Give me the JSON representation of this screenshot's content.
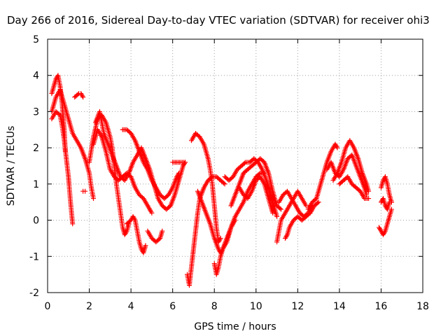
{
  "chart_data": {
    "type": "scatter",
    "title": "Day 266 of 2016, Sidereal Day-to-day VTEC variation (SDTVAR) for receiver ohi3",
    "xlabel": "GPS time / hours",
    "ylabel": "SDTVAR / TECUs",
    "xlim": [
      0,
      18
    ],
    "ylim": [
      -2,
      5
    ],
    "xticks": [
      "0",
      "2",
      "4",
      "6",
      "8",
      "10",
      "12",
      "14",
      "16",
      "18"
    ],
    "yticks": [
      "-2",
      "-1",
      "0",
      "1",
      "2",
      "3",
      "4",
      "5"
    ],
    "grid": true,
    "marker": "+",
    "color": "#ff0000",
    "tracks": [
      [
        [
          0.2,
          3.0
        ],
        [
          0.4,
          3.4
        ],
        [
          0.6,
          3.6
        ],
        [
          0.8,
          3.2
        ],
        [
          1.0,
          2.8
        ],
        [
          1.2,
          2.4
        ],
        [
          1.4,
          2.2
        ],
        [
          1.6,
          2.0
        ],
        [
          1.8,
          1.7
        ],
        [
          2.0,
          1.3
        ],
        [
          2.1,
          0.9
        ],
        [
          2.2,
          0.6
        ]
      ],
      [
        [
          0.2,
          2.8
        ],
        [
          0.4,
          3.0
        ],
        [
          0.6,
          2.9
        ],
        [
          0.7,
          2.6
        ],
        [
          0.8,
          2.2
        ],
        [
          0.9,
          1.7
        ],
        [
          1.0,
          1.2
        ],
        [
          1.1,
          0.5
        ],
        [
          1.2,
          -0.1
        ]
      ],
      [
        [
          0.2,
          3.5
        ],
        [
          0.4,
          3.9
        ],
        [
          0.5,
          4.0
        ],
        [
          0.6,
          3.7
        ],
        [
          0.7,
          3.2
        ],
        [
          0.8,
          2.5
        ],
        [
          0.85,
          1.9
        ]
      ],
      [
        [
          1.3,
          3.4
        ],
        [
          1.5,
          3.5
        ],
        [
          1.6,
          3.5
        ],
        [
          1.7,
          3.4
        ]
      ],
      [
        [
          1.7,
          0.8
        ],
        [
          1.8,
          0.8
        ]
      ],
      [
        [
          2.0,
          1.6
        ],
        [
          2.2,
          2.3
        ],
        [
          2.4,
          2.8
        ],
        [
          2.6,
          2.9
        ],
        [
          2.8,
          2.7
        ],
        [
          3.0,
          2.3
        ],
        [
          3.1,
          2.0
        ],
        [
          3.2,
          1.5
        ],
        [
          3.3,
          1.0
        ],
        [
          3.4,
          0.6
        ],
        [
          3.5,
          0.2
        ],
        [
          3.6,
          -0.2
        ],
        [
          3.7,
          -0.4
        ],
        [
          3.8,
          -0.3
        ],
        [
          3.9,
          -0.1
        ]
      ],
      [
        [
          2.2,
          2.1
        ],
        [
          2.4,
          2.5
        ],
        [
          2.6,
          2.3
        ],
        [
          2.8,
          1.9
        ],
        [
          3.0,
          1.4
        ],
        [
          3.2,
          1.2
        ],
        [
          3.4,
          1.1
        ],
        [
          3.6,
          1.2
        ],
        [
          3.8,
          1.3
        ],
        [
          4.0,
          1.2
        ],
        [
          4.2,
          0.9
        ],
        [
          4.4,
          0.7
        ],
        [
          4.6,
          0.6
        ],
        [
          4.8,
          0.4
        ],
        [
          5.0,
          0.2
        ]
      ],
      [
        [
          2.3,
          2.7
        ],
        [
          2.5,
          3.0
        ],
        [
          2.7,
          2.4
        ],
        [
          2.9,
          2.1
        ],
        [
          3.1,
          1.8
        ],
        [
          3.3,
          1.5
        ],
        [
          3.5,
          1.2
        ],
        [
          3.7,
          1.1
        ],
        [
          3.9,
          1.3
        ],
        [
          4.1,
          1.6
        ],
        [
          4.3,
          1.8
        ],
        [
          4.5,
          2.0
        ],
        [
          4.7,
          1.7
        ],
        [
          4.9,
          1.4
        ],
        [
          5.1,
          1.0
        ],
        [
          5.3,
          0.6
        ],
        [
          5.5,
          0.4
        ],
        [
          5.7,
          0.3
        ],
        [
          5.9,
          0.4
        ],
        [
          6.1,
          0.7
        ],
        [
          6.3,
          1.1
        ],
        [
          6.5,
          1.5
        ],
        [
          6.6,
          1.6
        ]
      ],
      [
        [
          3.6,
          2.5
        ],
        [
          3.8,
          2.5
        ],
        [
          4.0,
          2.4
        ],
        [
          4.2,
          2.2
        ],
        [
          4.4,
          1.9
        ],
        [
          4.6,
          1.6
        ],
        [
          4.8,
          1.4
        ],
        [
          5.0,
          1.1
        ],
        [
          5.2,
          0.9
        ],
        [
          5.4,
          0.7
        ],
        [
          5.6,
          0.6
        ],
        [
          5.8,
          0.7
        ],
        [
          6.0,
          0.9
        ],
        [
          6.2,
          1.2
        ],
        [
          6.3,
          1.3
        ]
      ],
      [
        [
          3.8,
          -0.1
        ],
        [
          4.0,
          0.0
        ],
        [
          4.1,
          0.1
        ],
        [
          4.2,
          0.0
        ],
        [
          4.3,
          -0.3
        ],
        [
          4.4,
          -0.6
        ],
        [
          4.5,
          -0.8
        ],
        [
          4.6,
          -0.9
        ],
        [
          4.7,
          -0.7
        ]
      ],
      [
        [
          4.8,
          -0.3
        ],
        [
          5.0,
          -0.5
        ],
        [
          5.2,
          -0.6
        ],
        [
          5.4,
          -0.5
        ],
        [
          5.5,
          -0.3
        ]
      ],
      [
        [
          6.0,
          1.6
        ],
        [
          6.2,
          1.6
        ],
        [
          6.4,
          1.6
        ],
        [
          6.6,
          1.6
        ]
      ],
      [
        [
          6.7,
          -1.5
        ],
        [
          6.8,
          -1.8
        ],
        [
          6.9,
          -1.3
        ],
        [
          7.0,
          -0.8
        ],
        [
          7.1,
          -0.3
        ],
        [
          7.2,
          0.2
        ],
        [
          7.3,
          0.6
        ],
        [
          7.5,
          0.9
        ],
        [
          7.7,
          1.1
        ],
        [
          7.9,
          1.2
        ],
        [
          8.1,
          1.2
        ],
        [
          8.3,
          1.1
        ],
        [
          8.5,
          1.0
        ]
      ],
      [
        [
          6.9,
          2.2
        ],
        [
          7.1,
          2.4
        ],
        [
          7.3,
          2.3
        ],
        [
          7.5,
          2.1
        ],
        [
          7.7,
          1.7
        ],
        [
          7.8,
          1.4
        ],
        [
          7.9,
          1.0
        ],
        [
          8.0,
          0.4
        ],
        [
          8.1,
          -0.2
        ],
        [
          8.2,
          -0.6
        ],
        [
          8.3,
          -0.5
        ]
      ],
      [
        [
          7.2,
          0.8
        ],
        [
          7.4,
          0.5
        ],
        [
          7.6,
          0.2
        ],
        [
          7.8,
          -0.1
        ],
        [
          8.0,
          -0.5
        ],
        [
          8.2,
          -0.8
        ],
        [
          8.3,
          -0.9
        ],
        [
          8.4,
          -0.8
        ],
        [
          8.6,
          -0.5
        ],
        [
          8.8,
          -0.2
        ],
        [
          9.0,
          0.0
        ]
      ],
      [
        [
          8.0,
          -1.2
        ],
        [
          8.1,
          -1.5
        ],
        [
          8.2,
          -1.3
        ],
        [
          8.3,
          -1.0
        ],
        [
          8.4,
          -0.8
        ],
        [
          8.6,
          -0.6
        ],
        [
          8.8,
          -0.2
        ],
        [
          9.0,
          0.1
        ],
        [
          9.2,
          0.3
        ],
        [
          9.4,
          0.5
        ],
        [
          9.6,
          0.8
        ],
        [
          9.8,
          1.0
        ],
        [
          10.0,
          1.2
        ],
        [
          10.2,
          1.3
        ],
        [
          10.4,
          1.3
        ]
      ],
      [
        [
          8.5,
          1.2
        ],
        [
          8.7,
          1.1
        ],
        [
          8.9,
          1.2
        ],
        [
          9.1,
          1.4
        ],
        [
          9.3,
          1.5
        ],
        [
          9.5,
          1.6
        ],
        [
          9.7,
          1.6
        ],
        [
          9.9,
          1.7
        ],
        [
          10.1,
          1.6
        ],
        [
          10.3,
          1.4
        ],
        [
          10.5,
          1.1
        ],
        [
          10.7,
          0.7
        ],
        [
          10.9,
          0.3
        ],
        [
          11.0,
          0.1
        ]
      ],
      [
        [
          8.8,
          0.4
        ],
        [
          9.0,
          0.7
        ],
        [
          9.2,
          1.0
        ],
        [
          9.4,
          1.3
        ],
        [
          9.6,
          1.4
        ],
        [
          9.8,
          1.5
        ],
        [
          10.0,
          1.6
        ],
        [
          10.2,
          1.7
        ],
        [
          10.4,
          1.6
        ],
        [
          10.6,
          1.3
        ],
        [
          10.8,
          0.8
        ],
        [
          11.0,
          0.4
        ],
        [
          11.2,
          0.3
        ]
      ],
      [
        [
          9.2,
          0.9
        ],
        [
          9.4,
          0.7
        ],
        [
          9.6,
          0.6
        ],
        [
          9.8,
          0.8
        ],
        [
          10.0,
          1.1
        ],
        [
          10.2,
          1.2
        ],
        [
          10.4,
          1.0
        ],
        [
          10.6,
          0.6
        ],
        [
          10.8,
          0.2
        ]
      ],
      [
        [
          11.0,
          -0.6
        ],
        [
          11.1,
          -0.3
        ],
        [
          11.2,
          0.0
        ],
        [
          11.4,
          0.2
        ],
        [
          11.6,
          0.4
        ],
        [
          11.8,
          0.6
        ],
        [
          12.0,
          0.8
        ],
        [
          12.2,
          0.6
        ],
        [
          12.4,
          0.4
        ]
      ],
      [
        [
          11.1,
          0.5
        ],
        [
          11.3,
          0.7
        ],
        [
          11.5,
          0.8
        ],
        [
          11.7,
          0.6
        ],
        [
          11.9,
          0.4
        ],
        [
          12.1,
          0.2
        ],
        [
          12.3,
          0.1
        ],
        [
          12.5,
          0.2
        ],
        [
          12.7,
          0.4
        ]
      ],
      [
        [
          11.4,
          -0.5
        ],
        [
          11.5,
          -0.4
        ],
        [
          11.6,
          -0.2
        ],
        [
          11.8,
          0.0
        ],
        [
          12.0,
          0.1
        ],
        [
          12.2,
          0.0
        ],
        [
          12.4,
          0.1
        ],
        [
          12.6,
          0.2
        ],
        [
          12.8,
          0.4
        ],
        [
          13.0,
          0.5
        ]
      ],
      [
        [
          12.5,
          0.3
        ],
        [
          12.7,
          0.5
        ],
        [
          12.9,
          0.6
        ],
        [
          13.0,
          0.8
        ],
        [
          13.2,
          1.2
        ],
        [
          13.4,
          1.6
        ],
        [
          13.6,
          1.9
        ],
        [
          13.8,
          2.1
        ],
        [
          13.9,
          2.0
        ]
      ],
      [
        [
          13.4,
          1.4
        ],
        [
          13.6,
          1.6
        ],
        [
          13.8,
          1.3
        ],
        [
          14.0,
          1.2
        ],
        [
          14.2,
          1.4
        ],
        [
          14.4,
          1.7
        ],
        [
          14.6,
          1.8
        ],
        [
          14.8,
          1.5
        ],
        [
          15.0,
          1.2
        ],
        [
          15.2,
          0.9
        ],
        [
          15.3,
          0.7
        ]
      ],
      [
        [
          13.7,
          1.1
        ],
        [
          13.9,
          1.3
        ],
        [
          14.1,
          1.6
        ],
        [
          14.3,
          2.0
        ],
        [
          14.5,
          2.2
        ],
        [
          14.7,
          2.0
        ],
        [
          14.9,
          1.7
        ],
        [
          15.1,
          1.3
        ],
        [
          15.3,
          1.0
        ],
        [
          15.4,
          0.8
        ]
      ],
      [
        [
          14.0,
          1.0
        ],
        [
          14.2,
          1.1
        ],
        [
          14.4,
          1.2
        ],
        [
          14.6,
          1.0
        ],
        [
          14.8,
          0.9
        ],
        [
          15.0,
          0.8
        ],
        [
          15.2,
          0.6
        ],
        [
          15.4,
          0.6
        ]
      ],
      [
        [
          15.9,
          -0.2
        ],
        [
          16.0,
          -0.3
        ],
        [
          16.1,
          -0.4
        ],
        [
          16.2,
          -0.3
        ],
        [
          16.3,
          -0.1
        ],
        [
          16.4,
          0.1
        ],
        [
          16.5,
          0.3
        ]
      ],
      [
        [
          16.0,
          0.9
        ],
        [
          16.1,
          1.1
        ],
        [
          16.2,
          1.2
        ],
        [
          16.3,
          1.0
        ],
        [
          16.4,
          0.7
        ],
        [
          16.5,
          0.5
        ]
      ],
      [
        [
          16.0,
          0.5
        ],
        [
          16.1,
          0.6
        ],
        [
          16.2,
          0.4
        ],
        [
          16.3,
          0.3
        ],
        [
          16.4,
          0.5
        ],
        [
          16.5,
          0.5
        ]
      ]
    ]
  }
}
